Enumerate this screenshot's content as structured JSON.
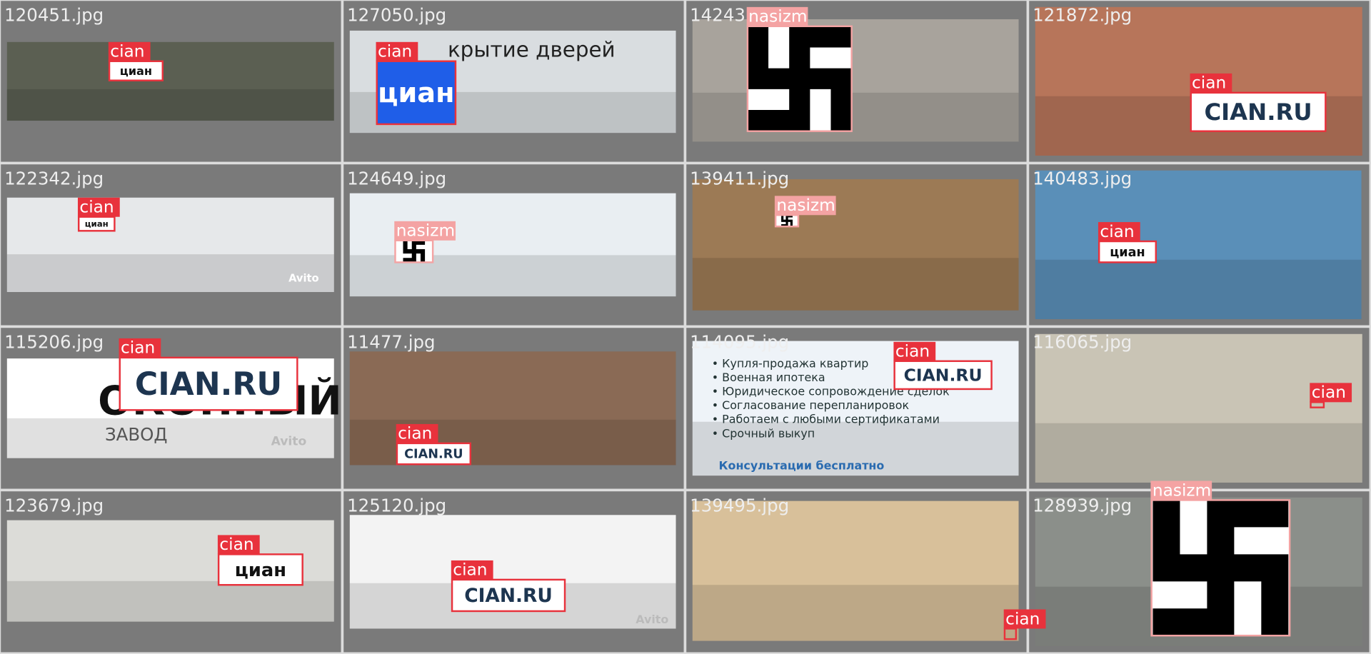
{
  "cells": [
    {
      "filename": "120451.jpg",
      "detections": [
        {
          "label": "cian",
          "logo": "циан"
        }
      ]
    },
    {
      "filename": "127050.jpg",
      "detections": [
        {
          "label": "cian",
          "logo": "циан"
        }
      ],
      "image_text": [
        "крытие дверей"
      ]
    },
    {
      "filename": "14243",
      "detections": [
        {
          "label": "nasizm"
        }
      ]
    },
    {
      "filename": "121872.jpg",
      "detections": [
        {
          "label": "cian",
          "logo": "CIAN.RU"
        }
      ]
    },
    {
      "filename": "122342.jpg",
      "detections": [
        {
          "label": "cian",
          "logo": "циан"
        }
      ],
      "image_text": [
        "Avito"
      ]
    },
    {
      "filename": "124649.jpg",
      "detections": [
        {
          "label": "nasizm"
        }
      ]
    },
    {
      "filename": "139411.jpg",
      "detections": [
        {
          "label": "nasizm"
        }
      ]
    },
    {
      "filename": "140483.jpg",
      "detections": [
        {
          "label": "cian",
          "logo": "циан"
        }
      ]
    },
    {
      "filename": "115206.jpg",
      "detections": [
        {
          "label": "cian",
          "logo": "CIAN.RU"
        }
      ],
      "image_text": [
        "ОКОННЫЙ",
        "ЗАВОД",
        "Avito"
      ]
    },
    {
      "filename": "11477.jpg",
      "detections": [
        {
          "label": "cian",
          "logo": "CIAN.RU"
        }
      ]
    },
    {
      "filename": "114095.jpg",
      "detections": [
        {
          "label": "cian",
          "logo": "CIAN.RU"
        }
      ],
      "image_text": [
        "• Купля-продажа квартир",
        "• Военная ипотека",
        "• Юридическое сопровождение сделок",
        "• Согласование перепланировок",
        "• Работаем с любыми сертификатами",
        "• Срочный выкуп",
        "Консультации бесплатно"
      ]
    },
    {
      "filename": "116065.jpg",
      "detections": [
        {
          "label": "cian"
        }
      ]
    },
    {
      "filename": "123679.jpg",
      "detections": [
        {
          "label": "cian",
          "logo": "циан"
        }
      ]
    },
    {
      "filename": "125120.jpg",
      "detections": [
        {
          "label": "cian",
          "logo": "CIAN.RU"
        }
      ],
      "image_text": [
        "Avito"
      ]
    },
    {
      "filename": "139495.jpg",
      "detections": [
        {
          "label": "cian"
        }
      ]
    },
    {
      "filename": "128939.jpg",
      "detections": [
        {
          "label": "nasizm"
        }
      ]
    }
  ]
}
